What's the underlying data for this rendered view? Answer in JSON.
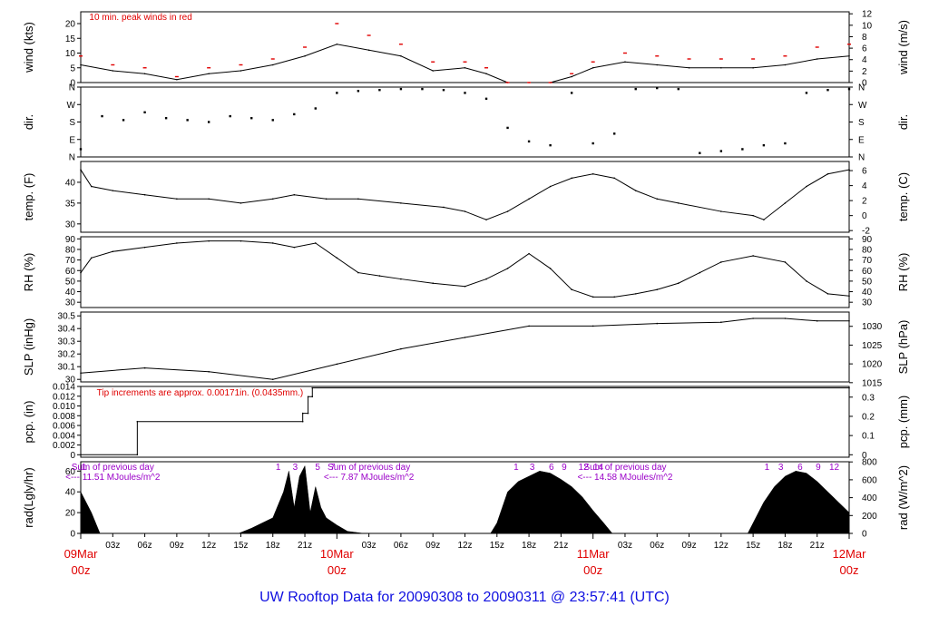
{
  "title": "UW Rooftop Data for 20090308  to  20090311 @ 23:57:41  (UTC)",
  "colors": {
    "trace": "#000000",
    "peak": "#e00000",
    "date": "#e00000",
    "solar": "#9a00c8",
    "title": "#1010e0"
  },
  "x_axis": {
    "hour_ticks": [
      "03z",
      "06z",
      "09z",
      "12z",
      "15z",
      "18z",
      "21z",
      "03z",
      "06z",
      "09z",
      "12z",
      "15z",
      "18z",
      "21z",
      "03z",
      "06z",
      "09z",
      "12z",
      "15z",
      "18z",
      "21z"
    ],
    "dates": [
      {
        "date": "09Mar",
        "hour": "00z"
      },
      {
        "date": "10Mar",
        "hour": "00z"
      },
      {
        "date": "11Mar",
        "hour": "00z"
      },
      {
        "date": "12Mar",
        "hour": "00z"
      }
    ]
  },
  "chart_data": [
    {
      "id": "wind",
      "type": "line",
      "ylabel": "wind (kts)",
      "ylabel_right": "wind (m/s)",
      "ylim": [
        0,
        24
      ],
      "yticks": [
        0,
        5,
        10,
        15,
        20
      ],
      "ylim_right": [
        0,
        12.35
      ],
      "yticks_right": [
        0,
        2,
        4,
        6,
        8,
        10,
        12
      ],
      "annotation": "10 min. peak winds in red",
      "x_hours": [
        0,
        3,
        6,
        9,
        12,
        15,
        18,
        21,
        24,
        27,
        30,
        33,
        36,
        38,
        40,
        42,
        44,
        46,
        48,
        51,
        54,
        57,
        60,
        63,
        66,
        69,
        72
      ],
      "values": [
        6,
        4,
        3,
        1,
        3,
        4,
        6,
        9,
        13,
        11,
        9,
        4,
        5,
        3,
        0,
        0,
        0,
        2,
        5,
        7,
        6,
        5,
        5,
        5,
        6,
        8,
        9
      ],
      "peak_values": [
        9,
        6,
        5,
        2,
        5,
        6,
        8,
        12,
        20,
        16,
        13,
        7,
        7,
        5,
        0,
        0,
        0,
        3,
        7,
        10,
        9,
        8,
        8,
        8,
        9,
        12,
        13
      ]
    },
    {
      "id": "dir",
      "type": "scatter",
      "ylabel": "dir.",
      "ylabel_right": "dir.",
      "ylim": [
        0,
        360
      ],
      "yticks": [
        0,
        90,
        180,
        270,
        360
      ],
      "yticklabels": [
        "N",
        "E",
        "S",
        "W",
        "N"
      ],
      "x_hours": [
        0,
        2,
        4,
        6,
        8,
        10,
        12,
        14,
        16,
        18,
        20,
        22,
        24,
        26,
        28,
        30,
        32,
        34,
        36,
        38,
        40,
        42,
        44,
        46,
        48,
        50,
        52,
        54,
        56,
        58,
        60,
        62,
        64,
        66,
        68,
        70,
        72
      ],
      "values": [
        40,
        210,
        190,
        230,
        200,
        190,
        180,
        210,
        200,
        190,
        220,
        250,
        330,
        340,
        345,
        350,
        350,
        345,
        330,
        300,
        150,
        80,
        60,
        330,
        70,
        120,
        350,
        355,
        350,
        20,
        30,
        40,
        60,
        70,
        330,
        345,
        350
      ]
    },
    {
      "id": "temp",
      "type": "line",
      "ylabel": "temp. (F)",
      "ylabel_right": "temp. (C)",
      "ylim": [
        28,
        45
      ],
      "yticks": [
        30,
        35,
        40
      ],
      "ylim_right": [
        -2.22,
        7.22
      ],
      "yticks_right": [
        -2,
        0,
        2,
        4,
        6
      ],
      "x_hours": [
        0,
        1,
        3,
        6,
        9,
        12,
        15,
        18,
        20,
        23,
        26,
        30,
        34,
        36,
        38,
        40,
        42,
        44,
        46,
        48,
        50,
        52,
        54,
        56,
        60,
        63,
        64,
        66,
        68,
        70,
        72
      ],
      "values": [
        43,
        39,
        38,
        37,
        36,
        36,
        35,
        36,
        37,
        36,
        36,
        35,
        34,
        33,
        31,
        33,
        36,
        39,
        41,
        42,
        41,
        38,
        36,
        35,
        33,
        32,
        31,
        35,
        39,
        42,
        43
      ]
    },
    {
      "id": "rh",
      "type": "line",
      "ylabel": "RH (%)",
      "ylabel_right": "RH (%)",
      "ylim": [
        25,
        92
      ],
      "yticks": [
        30,
        40,
        50,
        60,
        70,
        80,
        90
      ],
      "ylim_right": [
        25,
        92
      ],
      "yticks_right": [
        30,
        40,
        50,
        60,
        70,
        80,
        90
      ],
      "x_hours": [
        0,
        1,
        3,
        6,
        9,
        12,
        15,
        18,
        20,
        22,
        24,
        26,
        28,
        30,
        33,
        36,
        38,
        40,
        42,
        44,
        46,
        48,
        50,
        52,
        54,
        56,
        58,
        60,
        63,
        66,
        68,
        70,
        72
      ],
      "values": [
        58,
        72,
        78,
        82,
        86,
        88,
        88,
        86,
        82,
        86,
        72,
        58,
        55,
        52,
        48,
        45,
        52,
        62,
        76,
        62,
        42,
        35,
        35,
        38,
        42,
        48,
        58,
        68,
        74,
        68,
        50,
        38,
        36
      ]
    },
    {
      "id": "slp",
      "type": "line",
      "ylabel": "SLP (inHg)",
      "ylabel_right": "SLP (hPa)",
      "ylim": [
        29.98,
        30.53
      ],
      "yticks": [
        30.0,
        30.1,
        30.2,
        30.3,
        30.4,
        30.5
      ],
      "ylim_right": [
        1015.2,
        1033.8
      ],
      "yticks_right": [
        1015,
        1020,
        1025,
        1030
      ],
      "x_hours": [
        0,
        6,
        12,
        18,
        24,
        30,
        36,
        42,
        48,
        54,
        60,
        63,
        66,
        69,
        72
      ],
      "values": [
        30.05,
        30.09,
        30.06,
        30.0,
        30.12,
        30.24,
        30.33,
        30.42,
        30.42,
        30.44,
        30.45,
        30.48,
        30.48,
        30.46,
        30.46
      ]
    },
    {
      "id": "pcp",
      "type": "line",
      "ylabel": "pcp. (in)",
      "ylabel_right": "pcp. (mm)",
      "ylim": [
        -0.0005,
        0.014
      ],
      "yticks": [
        0,
        0.002,
        0.004,
        0.006,
        0.008,
        0.01,
        0.012,
        0.014
      ],
      "yticklabels": [
        "0",
        "0.002",
        "0.004",
        "0.006",
        "0.008",
        "0.010",
        "0.012",
        "0.014"
      ],
      "ylim_right": [
        -0.0127,
        0.3556
      ],
      "yticks_right": [
        0,
        0.1,
        0.2,
        0.3
      ],
      "annotation": "Tip increments are approx. 0.00171in. (0.0435mm.)",
      "x_hours": [
        0,
        5.3,
        5.3,
        20.8,
        20.8,
        21.3,
        21.3,
        21.7,
        21.7,
        72
      ],
      "values": [
        0,
        0,
        0.0068,
        0.0068,
        0.0085,
        0.0085,
        0.0119,
        0.0119,
        0.0137,
        0.0137
      ]
    },
    {
      "id": "rad",
      "type": "area",
      "ylabel": "rad(Lgly/hr)",
      "ylabel_right": "rad (W/m^2)",
      "ylim": [
        0,
        69
      ],
      "yticks": [
        0,
        20,
        40,
        60
      ],
      "ylim_right": [
        0,
        802
      ],
      "yticks_right": [
        0,
        200,
        400,
        600,
        800
      ],
      "annotations": [
        {
          "text": "Sum of previous day",
          "value": "<--- 11.51 MJoules/m^2"
        },
        {
          "text": "Sum of previous day",
          "value": "<--- 7.87 MJoules/m^2"
        },
        {
          "text": "Sum of previous day",
          "value": "<--- 14.58 MJoules/m^2"
        }
      ],
      "hour_marks": [
        {
          "day": 0,
          "labels": [
            "1"
          ]
        },
        {
          "day": 1,
          "labels": [
            "1",
            "3",
            "5",
            "7"
          ]
        },
        {
          "day": 2,
          "labels": [
            "1",
            "3",
            "6",
            "9",
            "12",
            "14"
          ]
        },
        {
          "day": 3,
          "labels": [
            "1",
            "3",
            "6",
            "9",
            "12"
          ]
        }
      ],
      "x_hours": [
        0,
        1,
        1.8,
        14.8,
        16,
        17,
        18,
        19,
        19.5,
        20,
        20.5,
        21,
        21.5,
        22,
        22.5,
        23,
        24,
        25,
        26.5,
        38.4,
        39,
        40,
        41,
        42,
        43,
        44,
        45,
        46,
        47,
        48,
        49,
        49.8,
        62.5,
        63,
        64,
        65,
        66,
        67,
        68,
        69,
        70,
        71,
        72
      ],
      "values": [
        40,
        20,
        0,
        0,
        5,
        10,
        15,
        40,
        60,
        25,
        55,
        65,
        20,
        45,
        25,
        15,
        8,
        2,
        0,
        0,
        10,
        40,
        50,
        55,
        60,
        58,
        52,
        45,
        35,
        22,
        10,
        0,
        0,
        10,
        30,
        45,
        55,
        60,
        58,
        50,
        40,
        30,
        20
      ]
    }
  ]
}
